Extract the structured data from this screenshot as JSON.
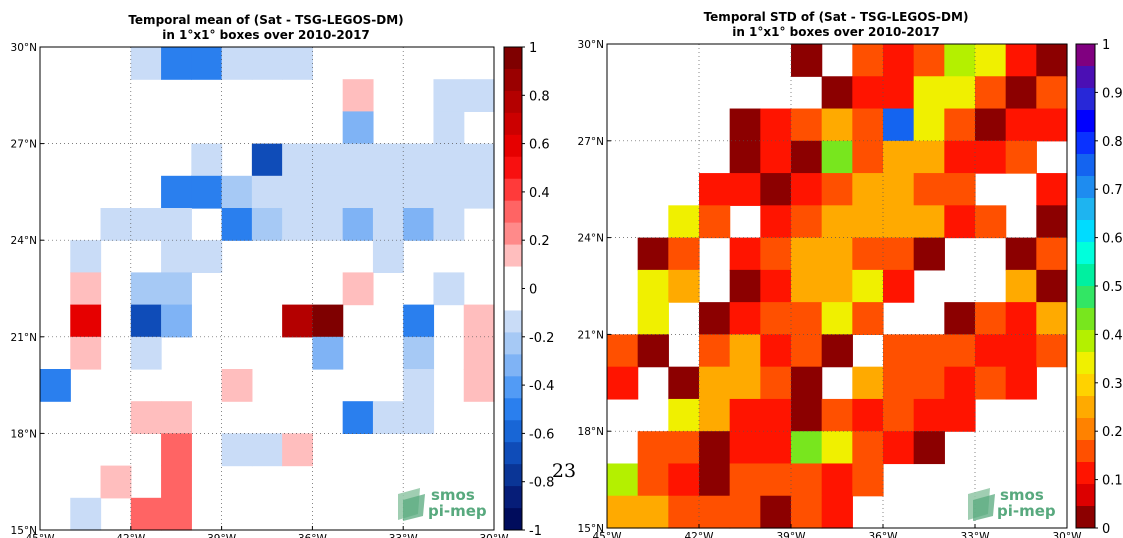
{
  "chart_data": [
    {
      "type": "heatmap",
      "title": "Temporal mean of (Sat - TSG-LEGOS-DM)",
      "subtitle": "in 1°x1° boxes over 2010-2017",
      "x_ticks": [
        "45°W",
        "42°W",
        "39°W",
        "36°W",
        "33°W",
        "30°W"
      ],
      "y_ticks": [
        "15°N",
        "18°N",
        "21°N",
        "24°N",
        "27°N",
        "30°N"
      ],
      "x_range": [
        -45,
        -30
      ],
      "y_range": [
        15,
        30
      ],
      "grid": true,
      "colorbar": {
        "range": [
          -1,
          1
        ],
        "ticks": [
          "1",
          "0.8",
          "0.6",
          "0.4",
          "0.2",
          "0",
          "-0.2",
          "-0.4",
          "-0.6",
          "-0.8",
          "-1"
        ],
        "colors": [
          "#7f0000",
          "#9a0000",
          "#b40000",
          "#cc0000",
          "#e60000",
          "#f81010",
          "#ff3a3a",
          "#ff6464",
          "#ff8a8a",
          "#ffbebe",
          "#ffffff",
          "#ffffff",
          "#c9dcf7",
          "#a6c9f5",
          "#7fb3f5",
          "#529bf5",
          "#2a7fee",
          "#1866d6",
          "#0f4cb8",
          "#0a3596",
          "#061d78",
          "#000c5c"
        ]
      },
      "cells_row_top": [
        "...LBBLLL....",
        "..........R..LLLNRN",
        "..........N..L.N.LPD",
        ".....L.DLLLLLLLPR",
        "....BBPLLLLLLLLL",
        "..LLL.BPLLNLNL.P",
        ".L..LL.....L",
        ".R.PP.....R..L.B",
        ".W.DN...TY..B.RR",
        ".R.L.....N..P.R",
        "B.....R.....L.RW",
        "...RR.....BLL",
        "....S.LLR",
        "..R.S",
        ".L.SS"
      ],
      "cell_values": {
        "L": -0.18,
        "B": -0.5,
        "N": -0.35,
        "P": -0.25,
        "D": -0.7,
        "R": 0.18,
        "S": 0.35,
        "W": 0.55,
        "T": 0.8,
        "Y": 1.0
      }
    },
    {
      "type": "heatmap",
      "title": "Temporal STD of (Sat - TSG-LEGOS-DM)",
      "subtitle": "in 1°x1° boxes over 2010-2017",
      "x_ticks": [
        "45°W",
        "42°W",
        "39°W",
        "36°W",
        "33°W",
        "30°W"
      ],
      "y_ticks": [
        "15°N",
        "18°N",
        "21°N",
        "24°N",
        "27°N",
        "30°N"
      ],
      "x_range": [
        -45,
        -30
      ],
      "y_range": [
        15,
        30
      ],
      "grid": true,
      "colorbar": {
        "range": [
          0,
          1
        ],
        "ticks": [
          "1",
          "0.9",
          "0.8",
          "0.7",
          "0.6",
          "0.5",
          "0.4",
          "0.3",
          "0.2",
          "0.1",
          "0"
        ],
        "colors": [
          "#800080",
          "#4b0fb4",
          "#2828d8",
          "#0000ff",
          "#0a32ff",
          "#1464f0",
          "#1e8cf0",
          "#1eb4f0",
          "#00dcff",
          "#00ffdc",
          "#00f0a0",
          "#32e664",
          "#78e61e",
          "#b4f000",
          "#f0f000",
          "#ffd200",
          "#ffaa00",
          "#ff8200",
          "#ff5000",
          "#ff1400",
          "#dc0000",
          "#8c0000"
        ]
      },
      "cells_row_top": [
        "......M.BPBCSPM",
        ".......MPPSSBMB",
        "....MPBNBYSBMPP",
        "....MPMTBNNPPBW",
        "...PPMPBNNBBW.P",
        "..SB.PBNNNNPB.MB",
        ".MB.PBNNBBM..MB",
        ".SN.MPNNSP...NMS",
        ".S.MPBBSB..MBPN",
        "BM.BNPBM.BBBPPB",
        "P.MNNBM.NBBPBP",
        "..SNPPMBPBPP",
        ".BBMPPGSBPM",
        "CBPMBBBPB",
        "NNBBBMBP"
      ],
      "cell_values": {
        "M": 0.02,
        "P": 0.1,
        "B": 0.18,
        "N": 0.25,
        "S": 0.33,
        "C": 0.37,
        "T": 0.43,
        "G": 0.45,
        "Y": 0.73
      }
    }
  ],
  "page_number": "23",
  "logo": {
    "line1": "smos",
    "line2": "pi-mep"
  }
}
